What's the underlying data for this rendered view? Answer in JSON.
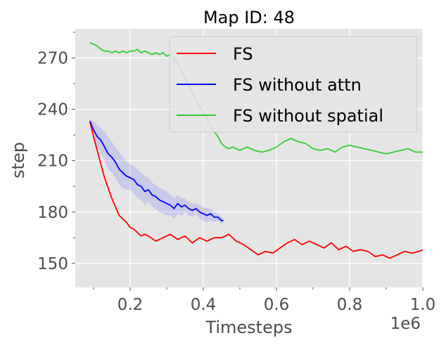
{
  "chart_data": {
    "type": "line",
    "title": "Map ID: 48",
    "xlabel": "Timesteps",
    "ylabel": "step",
    "x_offset_label": "1e6",
    "xlim": [
      0.05,
      1.0
    ],
    "ylim": [
      136,
      287
    ],
    "x_ticks": [
      0.2,
      0.4,
      0.6,
      0.8,
      1.0
    ],
    "x_tick_labels": [
      "0.2",
      "0.4",
      "0.6",
      "0.8",
      "1.0"
    ],
    "x_minor_ticks": [
      0.1,
      0.3,
      0.5,
      0.7,
      0.9
    ],
    "y_ticks": [
      150,
      180,
      210,
      240,
      270
    ],
    "y_tick_labels": [
      "150",
      "180",
      "210",
      "240",
      "270"
    ],
    "y_minor_ticks": [
      165,
      195,
      225,
      255,
      285
    ],
    "grid": true,
    "background": "#e5e5e5",
    "legend": {
      "position": "upper-right"
    },
    "series": [
      {
        "name": "FS",
        "color": "#ff0000",
        "x": [
          0.09,
          0.1,
          0.11,
          0.12,
          0.13,
          0.14,
          0.15,
          0.16,
          0.17,
          0.18,
          0.19,
          0.2,
          0.21,
          0.22,
          0.23,
          0.24,
          0.25,
          0.27,
          0.29,
          0.31,
          0.33,
          0.35,
          0.37,
          0.39,
          0.41,
          0.43,
          0.45,
          0.47,
          0.49,
          0.51,
          0.53,
          0.55,
          0.57,
          0.59,
          0.61,
          0.63,
          0.65,
          0.67,
          0.69,
          0.71,
          0.73,
          0.75,
          0.77,
          0.79,
          0.81,
          0.83,
          0.85,
          0.87,
          0.89,
          0.91,
          0.93,
          0.95,
          0.97,
          0.99,
          1.0
        ],
        "y": [
          233,
          224,
          216,
          208,
          200,
          194,
          188,
          183,
          178,
          176,
          174,
          171,
          170,
          168,
          166,
          167,
          166,
          163,
          165,
          167,
          164,
          166,
          162,
          165,
          163,
          165,
          165,
          167,
          163,
          161,
          158,
          155,
          157,
          156,
          159,
          162,
          164,
          161,
          163,
          161,
          159,
          162,
          158,
          160,
          157,
          158,
          157,
          154,
          155,
          153,
          155,
          157,
          156,
          157,
          158
        ]
      },
      {
        "name": "FS without attn",
        "color": "#0000ff",
        "x": [
          0.09,
          0.1,
          0.11,
          0.12,
          0.13,
          0.14,
          0.15,
          0.16,
          0.17,
          0.18,
          0.19,
          0.2,
          0.21,
          0.22,
          0.23,
          0.24,
          0.25,
          0.26,
          0.27,
          0.28,
          0.29,
          0.3,
          0.31,
          0.32,
          0.33,
          0.34,
          0.35,
          0.36,
          0.37,
          0.38,
          0.39,
          0.4,
          0.41,
          0.42,
          0.43,
          0.44,
          0.45,
          0.455
        ],
        "y": [
          233,
          228,
          224,
          222,
          218,
          214,
          212,
          209,
          205,
          203,
          201,
          200,
          199,
          196,
          195,
          192,
          193,
          190,
          189,
          187,
          186,
          185,
          184,
          182,
          185,
          183,
          184,
          182,
          181,
          182,
          180,
          179,
          178,
          179,
          177,
          177,
          175,
          175
        ]
      },
      {
        "name": "FS without spatial",
        "color": "#32cd32",
        "x": [
          0.09,
          0.1,
          0.11,
          0.12,
          0.13,
          0.14,
          0.15,
          0.16,
          0.17,
          0.18,
          0.19,
          0.2,
          0.21,
          0.22,
          0.23,
          0.24,
          0.25,
          0.26,
          0.27,
          0.28,
          0.29,
          0.3,
          0.31,
          0.32,
          0.33,
          0.34,
          0.35,
          0.36,
          0.37,
          0.38,
          0.39,
          0.4,
          0.41,
          0.42,
          0.43,
          0.44,
          0.45,
          0.46,
          0.47,
          0.48,
          0.49,
          0.5,
          0.52,
          0.54,
          0.56,
          0.58,
          0.6,
          0.62,
          0.64,
          0.66,
          0.68,
          0.7,
          0.72,
          0.74,
          0.76,
          0.78,
          0.8,
          0.82,
          0.84,
          0.86,
          0.88,
          0.9,
          0.92,
          0.94,
          0.96,
          0.98,
          1.0
        ],
        "y": [
          279,
          278,
          277,
          275,
          274,
          274,
          273,
          274,
          273,
          274,
          273,
          274,
          274,
          275,
          273,
          274,
          273,
          272,
          273,
          272,
          273,
          271,
          272,
          270,
          266,
          262,
          258,
          254,
          250,
          246,
          242,
          238,
          234,
          230,
          227,
          224,
          220,
          218,
          217,
          218,
          217,
          216,
          218,
          216,
          215,
          216,
          218,
          221,
          223,
          221,
          220,
          217,
          216,
          217,
          215,
          218,
          219,
          218,
          217,
          216,
          215,
          214,
          215,
          216,
          217,
          215,
          215
        ]
      }
    ],
    "band": {
      "series": "FS without attn",
      "color": "#0000ff",
      "x": [
        0.09,
        0.1,
        0.11,
        0.12,
        0.13,
        0.14,
        0.15,
        0.16,
        0.17,
        0.18,
        0.19,
        0.2,
        0.21,
        0.22,
        0.23,
        0.24,
        0.25,
        0.26,
        0.27,
        0.28,
        0.29,
        0.3,
        0.31,
        0.32,
        0.33,
        0.34,
        0.35,
        0.36,
        0.37,
        0.38,
        0.39,
        0.4,
        0.41,
        0.42,
        0.43,
        0.44,
        0.45,
        0.455
      ],
      "upper": [
        234,
        233,
        231,
        229,
        227,
        224,
        221,
        218,
        215,
        212,
        210,
        208,
        207,
        205,
        203,
        201,
        200,
        197,
        196,
        194,
        193,
        192,
        190,
        188,
        190,
        188,
        188,
        186,
        185,
        185,
        184,
        183,
        182,
        182,
        180,
        179,
        177,
        176
      ],
      "lower": [
        232,
        224,
        218,
        215,
        210,
        205,
        203,
        200,
        196,
        194,
        193,
        193,
        191,
        188,
        187,
        184,
        186,
        183,
        182,
        180,
        179,
        178,
        178,
        176,
        179,
        178,
        180,
        178,
        177,
        179,
        176,
        175,
        174,
        175,
        174,
        175,
        173,
        174
      ]
    }
  }
}
